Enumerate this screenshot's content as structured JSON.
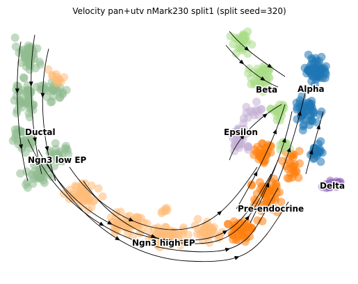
{
  "chart_data": {
    "type": "scatter",
    "title": "Velocity pan+utv nMark230 split1 (split seed=320)",
    "xlabel": "",
    "ylabel": "",
    "grid": false,
    "legend": "none",
    "clusters": [
      {
        "name": "Ductal",
        "color": "#8fbc8f"
      },
      {
        "name": "Ngn3 low EP",
        "color": "#8fbc8f"
      },
      {
        "name": "Ngn3 high EP",
        "color": "#ffbb78"
      },
      {
        "name": "Pre-endocrine",
        "color": "#ff7f0e"
      },
      {
        "name": "Beta",
        "color": "#aadd88"
      },
      {
        "name": "Alpha",
        "color": "#1f77b4"
      },
      {
        "name": "Epsilon",
        "color": "#c5b0d5"
      },
      {
        "name": "Delta",
        "color": "#9467bd"
      }
    ]
  }
}
